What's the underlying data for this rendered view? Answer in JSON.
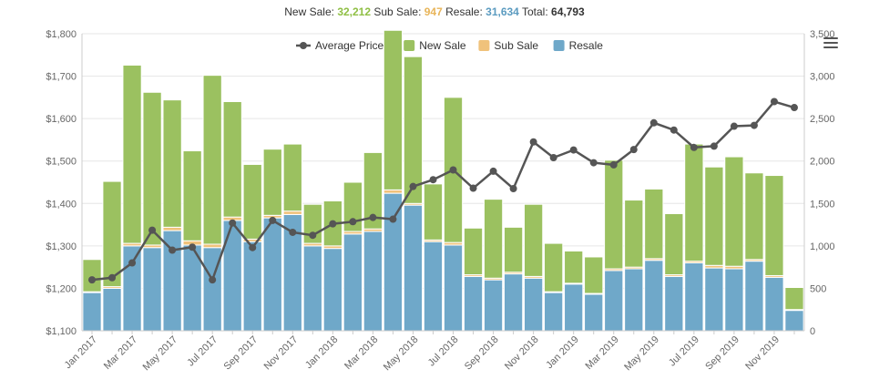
{
  "summary": {
    "new_sale_label": "New Sale:",
    "new_sale_value": "32,212",
    "sub_sale_label": "Sub Sale:",
    "sub_sale_value": "947",
    "resale_label": "Resale:",
    "resale_value": "31,634",
    "total_label": "Total:",
    "total_value": "64,793"
  },
  "colors": {
    "new_sale": "#9bc160",
    "sub_sale": "#f0c27b",
    "resale": "#6fa8c9",
    "average_price": "#555555",
    "new_sale_text": "#8fbf44",
    "sub_sale_text": "#e8b55a",
    "resale_text": "#5b9bc0"
  },
  "chart_data": {
    "type": "bar",
    "stacked": true,
    "x": [
      "Jan 2017",
      "Feb 2017",
      "Mar 2017",
      "Apr 2017",
      "May 2017",
      "Jun 2017",
      "Jul 2017",
      "Aug 2017",
      "Sep 2017",
      "Oct 2017",
      "Nov 2017",
      "Dec 2017",
      "Jan 2018",
      "Feb 2018",
      "Mar 2018",
      "Apr 2018",
      "May 2018",
      "Jun 2018",
      "Jul 2018",
      "Aug 2018",
      "Sep 2018",
      "Oct 2018",
      "Nov 2018",
      "Dec 2018",
      "Jan 2019",
      "Feb 2019",
      "Mar 2019",
      "Apr 2019",
      "May 2019",
      "Jun 2019",
      "Jul 2019",
      "Aug 2019",
      "Sep 2019",
      "Oct 2019",
      "Nov 2019",
      "Dec 2019"
    ],
    "tick_labels": [
      "Jan 2017",
      "Mar 2017",
      "May 2017",
      "Jul 2017",
      "Sep 2017",
      "Nov 2017",
      "Jan 2018",
      "Mar 2018",
      "May 2018",
      "Jul 2018",
      "Sep 2018",
      "Nov 2018",
      "Jan 2019",
      "Mar 2019",
      "May 2019",
      "Jul 2019",
      "Sep 2019",
      "Nov 2019"
    ],
    "series": [
      {
        "name": "Resale",
        "axis": "right",
        "values": [
          450,
          500,
          1000,
          980,
          1180,
          1010,
          980,
          1300,
          1050,
          1330,
          1370,
          1000,
          970,
          1140,
          1170,
          1620,
          1480,
          1050,
          1010,
          640,
          600,
          670,
          620,
          450,
          550,
          430,
          710,
          730,
          830,
          640,
          800,
          740,
          730,
          820,
          630,
          240
        ]
      },
      {
        "name": "Sub Sale",
        "axis": "right",
        "values": [
          10,
          20,
          30,
          30,
          40,
          50,
          40,
          40,
          30,
          30,
          40,
          30,
          30,
          30,
          30,
          40,
          20,
          20,
          30,
          20,
          20,
          20,
          20,
          10,
          10,
          10,
          20,
          20,
          20,
          20,
          20,
          30,
          30,
          20,
          20,
          10
        ]
      },
      {
        "name": "New Sale",
        "axis": "right",
        "values": [
          380,
          1240,
          2100,
          1800,
          1500,
          1060,
          1990,
          1360,
          880,
          780,
          790,
          460,
          530,
          580,
          900,
          1880,
          1730,
          660,
          1710,
          550,
          930,
          530,
          850,
          570,
          380,
          430,
          1280,
          790,
          820,
          720,
          1380,
          1160,
          1290,
          1020,
          1180,
          260
        ]
      },
      {
        "name": "Average Price",
        "type": "line",
        "axis": "left",
        "values": [
          1220,
          1225,
          1260,
          1337,
          1290,
          1297,
          1220,
          1354,
          1296,
          1360,
          1332,
          1325,
          1352,
          1357,
          1367,
          1363,
          1440,
          1456,
          1479,
          1436,
          1476,
          1435,
          1545,
          1508,
          1526,
          1496,
          1491,
          1527,
          1590,
          1573,
          1532,
          1535,
          1582,
          1584,
          1640,
          1626
        ]
      }
    ],
    "y_left": {
      "min": 1100,
      "max": 1800,
      "ticks": [
        "$1,100",
        "$1,200",
        "$1,300",
        "$1,400",
        "$1,500",
        "$1,600",
        "$1,700",
        "$1,800"
      ]
    },
    "y_right": {
      "min": 0,
      "max": 3500,
      "ticks": [
        "0",
        "500",
        "1,000",
        "1,500",
        "2,000",
        "2,500",
        "3,000",
        "3,500"
      ]
    },
    "legend": [
      "Average Price",
      "New Sale",
      "Sub Sale",
      "Resale"
    ],
    "legend_position": "top-center",
    "grid": true
  }
}
